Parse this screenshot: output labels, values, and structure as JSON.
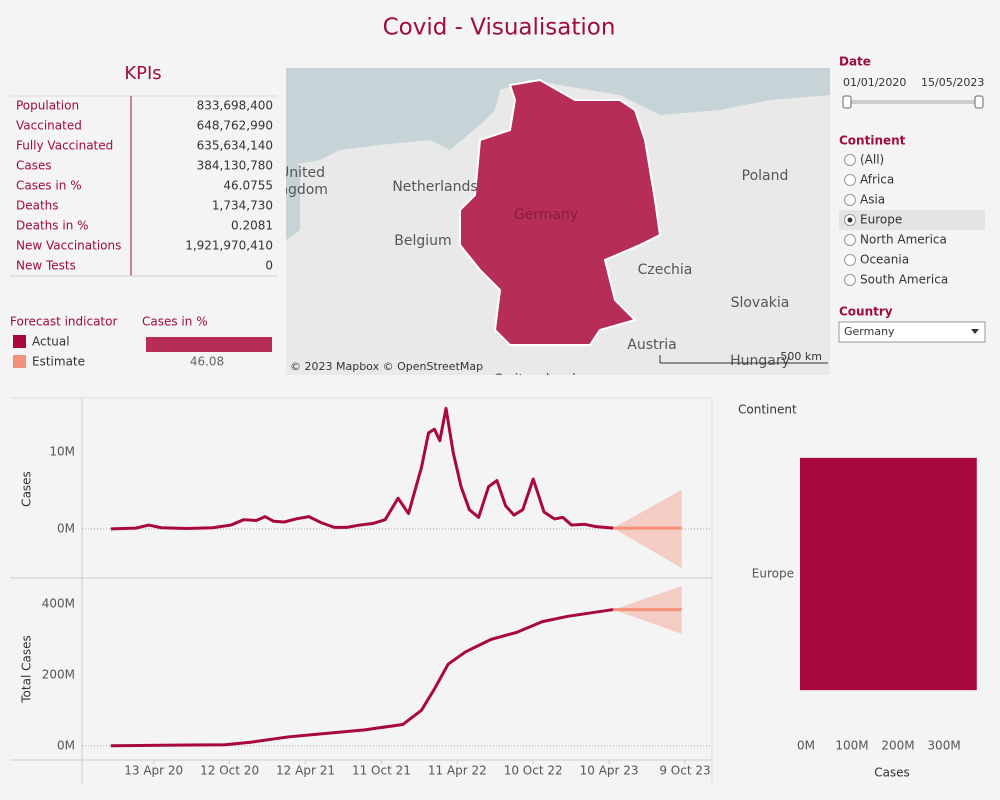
{
  "title": "Covid - Visualisation",
  "kpis": {
    "title": "KPIs",
    "rows": [
      {
        "label": "Population",
        "value": "833,698,400"
      },
      {
        "label": "Vaccinated",
        "value": "648,762,990"
      },
      {
        "label": "Fully Vaccinated",
        "value": "635,634,140"
      },
      {
        "label": "Cases",
        "value": "384,130,780"
      },
      {
        "label": "Cases in %",
        "value": "46.0755"
      },
      {
        "label": "Deaths",
        "value": "1,734,730"
      },
      {
        "label": "Deaths in %",
        "value": "0.2081"
      },
      {
        "label": "New Vaccinations",
        "value": "1,921,970,410"
      },
      {
        "label": "New Tests",
        "value": "0"
      }
    ]
  },
  "forecast_legend": {
    "title": "Forecast indicator"
  },
  "cases_pct": {
    "title": "Cases in %",
    "value": 46.08,
    "xlim": [
      0,
      46.08
    ],
    "color": "#b62d57"
  },
  "map": {
    "labels": [
      "Netherlands",
      "Belgium",
      "Germany",
      "Poland",
      "Czechia",
      "Slovakia",
      "Austria",
      "Hungary",
      "Switzerland",
      "United",
      "Kingdom"
    ],
    "attribution": "© 2023 Mapbox  © OpenStreetMap",
    "scale": "500 km"
  },
  "filters": {
    "date": {
      "title": "Date",
      "start": "01/01/2020",
      "end": "15/05/2023"
    },
    "continent": {
      "title": "Continent",
      "options": [
        "(All)",
        "Africa",
        "Asia",
        "Europe",
        "North America",
        "Oceania",
        "South America"
      ],
      "selected": 3
    },
    "country": {
      "title": "Country",
      "value": "Germany"
    }
  },
  "chart_data": [
    {
      "type": "line",
      "y_label": "Cases",
      "xlim": [
        "2019-10-24",
        "2023-12-08"
      ],
      "ylim": [
        -6400000,
        16800000
      ],
      "yticks": [
        {
          "value": 0,
          "label": "0M"
        },
        {
          "value": 10000000,
          "label": "10M"
        }
      ],
      "series": [
        {
          "name": "Actual",
          "color": "#a8083b",
          "x": [
            "2020-01-01",
            "2020-03-01",
            "2020-04-01",
            "2020-05-01",
            "2020-07-01",
            "2020-09-01",
            "2020-10-15",
            "2020-11-15",
            "2020-12-15",
            "2021-01-05",
            "2021-01-25",
            "2021-02-20",
            "2021-03-20",
            "2021-04-20",
            "2021-05-20",
            "2021-06-20",
            "2021-07-20",
            "2021-08-20",
            "2021-09-20",
            "2021-10-20",
            "2021-11-20",
            "2021-12-15",
            "2022-01-15",
            "2022-02-01",
            "2022-02-15",
            "2022-02-28",
            "2022-03-15",
            "2022-04-01",
            "2022-04-20",
            "2022-05-10",
            "2022-06-01",
            "2022-06-25",
            "2022-07-15",
            "2022-08-05",
            "2022-08-25",
            "2022-09-15",
            "2022-10-10",
            "2022-11-05",
            "2022-11-30",
            "2022-12-20",
            "2023-01-10",
            "2023-02-10",
            "2023-03-10",
            "2023-04-20"
          ],
          "values": [
            0,
            100000,
            500000,
            150000,
            50000,
            150000,
            500000,
            1200000,
            1100000,
            1600000,
            1000000,
            900000,
            1300000,
            1600000,
            800000,
            200000,
            200000,
            500000,
            700000,
            1200000,
            4000000,
            2000000,
            8000000,
            12500000,
            13000000,
            11500000,
            15700000,
            10000000,
            5500000,
            2500000,
            1500000,
            5500000,
            6300000,
            3000000,
            1800000,
            2500000,
            6500000,
            2200000,
            1300000,
            1500000,
            500000,
            600000,
            300000,
            100000
          ]
        },
        {
          "name": "Estimate",
          "color": "#f4907a",
          "x": [
            "2023-04-20",
            "2023-10-01"
          ],
          "values": [
            100000,
            100000
          ],
          "lower": [
            100000,
            -5100000
          ],
          "upper": [
            100000,
            5100000
          ]
        }
      ]
    },
    {
      "type": "line",
      "y_label": "Total Cases",
      "xlim": [
        "2019-10-24",
        "2023-12-08"
      ],
      "xticks": [
        {
          "value": "2020-04-13",
          "label": "13 Apr 20"
        },
        {
          "value": "2020-10-12",
          "label": "12 Oct 20"
        },
        {
          "value": "2021-04-12",
          "label": "12 Apr 21"
        },
        {
          "value": "2021-10-11",
          "label": "11 Oct 21"
        },
        {
          "value": "2022-04-11",
          "label": "11 Apr 22"
        },
        {
          "value": "2022-10-10",
          "label": "10 Oct 22"
        },
        {
          "value": "2023-04-10",
          "label": "10 Apr 23"
        },
        {
          "value": "2023-10-09",
          "label": "9 Oct 23"
        }
      ],
      "ylim": [
        -40000000,
        473000000
      ],
      "yticks": [
        {
          "value": 0,
          "label": "0M"
        },
        {
          "value": 200000000,
          "label": "200M"
        },
        {
          "value": 400000000,
          "label": "400M"
        }
      ],
      "series": [
        {
          "name": "Actual",
          "color": "#a8083b",
          "x": [
            "2020-01-01",
            "2020-06-01",
            "2020-10-01",
            "2020-12-01",
            "2021-03-01",
            "2021-06-01",
            "2021-09-01",
            "2021-12-01",
            "2022-01-15",
            "2022-02-15",
            "2022-03-20",
            "2022-05-01",
            "2022-07-01",
            "2022-09-01",
            "2022-11-01",
            "2023-01-01",
            "2023-04-20"
          ],
          "values": [
            0,
            2000000,
            3000000,
            10000000,
            25000000,
            35000000,
            45000000,
            60000000,
            100000000,
            160000000,
            230000000,
            265000000,
            300000000,
            320000000,
            350000000,
            365000000,
            384000000
          ]
        },
        {
          "name": "Estimate",
          "color": "#f4907a",
          "x": [
            "2023-04-20",
            "2023-10-01"
          ],
          "values": [
            384000000,
            384000000
          ],
          "lower": [
            384000000,
            316000000
          ],
          "upper": [
            384000000,
            450000000
          ]
        }
      ]
    },
    {
      "type": "hbar",
      "y_label": "Continent",
      "x_label": "Cases",
      "categories": [
        "Europe"
      ],
      "values": [
        384130780
      ],
      "color": "#a8083b",
      "xlim": [
        0,
        402000000
      ],
      "xticks": [
        {
          "value": 0,
          "label": "0M"
        },
        {
          "value": 100000000,
          "label": "100M"
        },
        {
          "value": 200000000,
          "label": "200M"
        },
        {
          "value": 300000000,
          "label": "300M"
        }
      ]
    }
  ]
}
